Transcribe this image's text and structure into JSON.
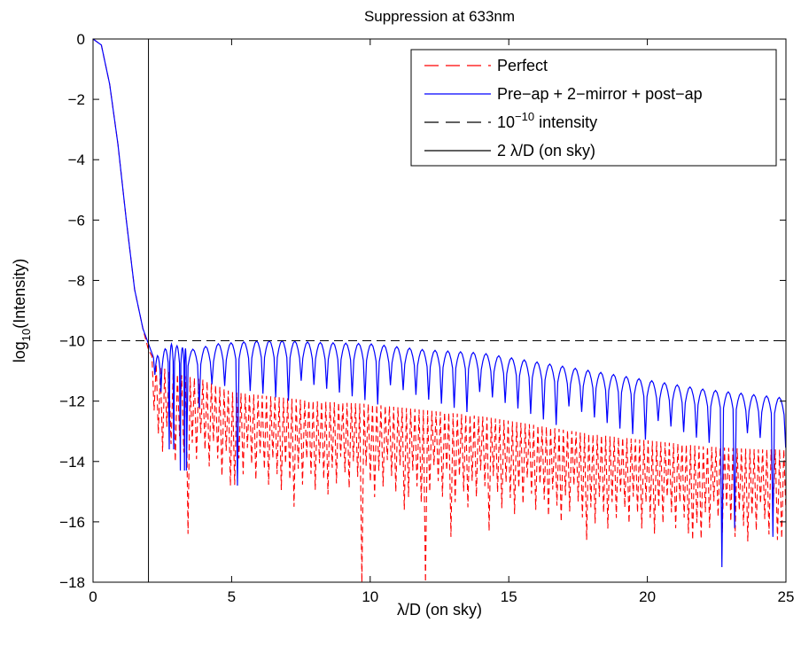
{
  "chart_data": {
    "type": "line",
    "title": "Suppression at 633nm",
    "xlabel": "λ/D (on sky)",
    "ylabel_main": "log",
    "ylabel_sub": "10",
    "ylabel_rest": "(Intensity)",
    "xlim": [
      0,
      25
    ],
    "ylim": [
      -18,
      0
    ],
    "xticks": [
      0,
      5,
      10,
      15,
      20,
      25
    ],
    "yticks": [
      0,
      -2,
      -4,
      -6,
      -8,
      -10,
      -12,
      -14,
      -16,
      -18
    ],
    "grid": false,
    "legend_position": "top-right",
    "series": [
      {
        "name": "Perfect",
        "color": "#ff0000",
        "style": "dashed",
        "envelope": [
          [
            0,
            0
          ],
          [
            0.3,
            -0.2
          ],
          [
            0.6,
            -1.5
          ],
          [
            0.9,
            -3.5
          ],
          [
            1.2,
            -6.0
          ],
          [
            1.5,
            -8.3
          ],
          [
            1.8,
            -9.6
          ],
          [
            2.0,
            -10.3
          ],
          [
            2.3,
            -10.8
          ],
          [
            3.0,
            -11.1
          ],
          [
            4.0,
            -11.3
          ],
          [
            5.0,
            -11.7
          ],
          [
            6.0,
            -11.8
          ],
          [
            8.0,
            -12.0
          ],
          [
            10.0,
            -12.1
          ],
          [
            12.0,
            -12.3
          ],
          [
            14.0,
            -12.5
          ],
          [
            16.0,
            -12.8
          ],
          [
            18.0,
            -13.1
          ],
          [
            20.0,
            -13.3
          ],
          [
            22.0,
            -13.5
          ],
          [
            24.0,
            -13.6
          ],
          [
            25.0,
            -13.6
          ]
        ],
        "min_count": 150,
        "deep_minima": [
          [
            3.3,
            -16.4
          ],
          [
            4.9,
            -14.8
          ],
          [
            7.2,
            -15.5
          ],
          [
            9.65,
            -18.0
          ],
          [
            11.1,
            -15.6
          ],
          [
            11.9,
            -18.0
          ],
          [
            12.8,
            -16.5
          ],
          [
            14.2,
            -16.3
          ],
          [
            17.8,
            -16.6
          ],
          [
            21.6,
            -16.6
          ],
          [
            24.6,
            -16.6
          ]
        ]
      },
      {
        "name": "Pre−ap + 2−mirror + post−ap",
        "color": "#0000ff",
        "style": "solid",
        "envelope": [
          [
            0,
            0
          ],
          [
            0.3,
            -0.2
          ],
          [
            0.6,
            -1.5
          ],
          [
            0.9,
            -3.5
          ],
          [
            1.2,
            -6.0
          ],
          [
            1.5,
            -8.3
          ],
          [
            1.8,
            -9.6
          ],
          [
            2.0,
            -10.1
          ],
          [
            2.2,
            -10.6
          ],
          [
            2.8,
            -10.1
          ],
          [
            3.5,
            -10.3
          ],
          [
            4.5,
            -10.1
          ],
          [
            6.0,
            -10.0
          ],
          [
            7.0,
            -10.0
          ],
          [
            8.0,
            -10.05
          ],
          [
            10.0,
            -10.1
          ],
          [
            12.0,
            -10.3
          ],
          [
            14.0,
            -10.4
          ],
          [
            16.0,
            -10.7
          ],
          [
            18.0,
            -11.0
          ],
          [
            20.0,
            -11.3
          ],
          [
            22.0,
            -11.6
          ],
          [
            24.0,
            -11.8
          ],
          [
            25.0,
            -11.9
          ]
        ],
        "lobe_start": 2.45,
        "lobe_width": 0.46,
        "deep_minima": [
          [
            2.75,
            -13.6
          ],
          [
            3.15,
            -13.6
          ],
          [
            3.3,
            -14.3
          ],
          [
            5.0,
            -14.8
          ],
          [
            22.7,
            -17.5
          ],
          [
            23.2,
            -16.2
          ],
          [
            24.6,
            -16.5
          ]
        ]
      },
      {
        "name": "10−10 intensity",
        "name_base": "10",
        "name_sup": "−10",
        "name_rest": " intensity",
        "color": "#000000",
        "style": "dashed",
        "y": -10
      },
      {
        "name": "2 λ/D (on sky)",
        "color": "#000000",
        "style": "solid",
        "x": 2
      }
    ]
  }
}
